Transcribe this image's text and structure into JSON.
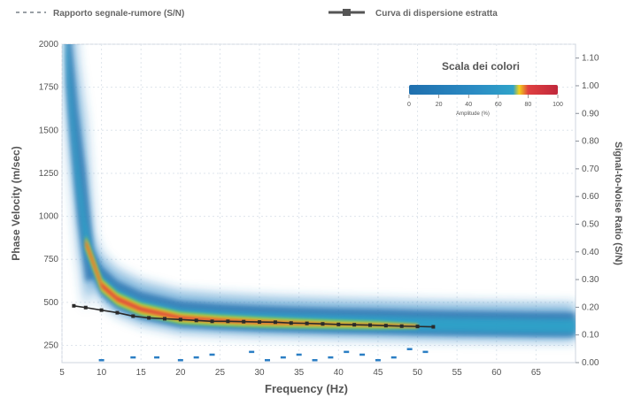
{
  "chart_data": {
    "type": "heatmap",
    "xlabel": "Frequency (Hz)",
    "ylabel": "Phase Velocity (m/sec)",
    "y2label": "Signal-to-Noise Ratio (S/N)",
    "xlim": [
      5,
      70
    ],
    "ylim": [
      150,
      2000
    ],
    "y2lim": [
      0.0,
      1.15
    ],
    "x_ticks": [
      "5",
      "10",
      "15",
      "20",
      "25",
      "30",
      "35",
      "40",
      "45",
      "50",
      "55",
      "60",
      "65"
    ],
    "y_ticks": [
      "250",
      "500",
      "750",
      "1000",
      "1250",
      "1500",
      "1750",
      "2000"
    ],
    "y2_ticks": [
      "0.00",
      "0.10",
      "0.20",
      "0.30",
      "0.40",
      "0.50",
      "0.60",
      "0.70",
      "0.80",
      "0.90",
      "1.00",
      "1.10"
    ],
    "grid": true,
    "legend": {
      "position": "top",
      "items": [
        {
          "label": "Rapporto segnale-rumore (S/N)",
          "style": "dashed",
          "color": "#9aa0a6"
        },
        {
          "label": "Curva di dispersione estratta",
          "style": "line-marker",
          "color": "#555555"
        }
      ]
    },
    "colorbar": {
      "title": "Scala dei colori",
      "label": "Amplitude (%)",
      "ticks": [
        "0",
        "20",
        "40",
        "60",
        "80",
        "100"
      ],
      "colors": [
        "#1f6fae",
        "#2b8cc4",
        "#2fa3c9",
        "#f2d21b",
        "#e04040",
        "#c0283c"
      ]
    },
    "dispersion_curve": {
      "x": [
        6.5,
        8,
        10,
        12,
        14,
        16,
        18,
        20,
        22,
        24,
        26,
        28,
        30,
        32,
        34,
        36,
        38,
        40,
        42,
        44,
        46,
        48,
        50,
        52
      ],
      "y": [
        480,
        470,
        455,
        440,
        420,
        410,
        405,
        400,
        395,
        390,
        390,
        388,
        386,
        385,
        380,
        378,
        375,
        372,
        370,
        368,
        365,
        362,
        360,
        358
      ]
    },
    "energy_ridge": {
      "x": [
        5.5,
        6,
        7,
        8,
        9,
        10,
        12,
        15,
        18,
        20,
        25,
        30,
        35,
        40,
        45,
        50,
        55,
        60,
        65,
        70
      ],
      "y": [
        2000,
        1700,
        1200,
        850,
        700,
        600,
        520,
        460,
        430,
        410,
        395,
        385,
        378,
        372,
        368,
        362,
        358,
        355,
        352,
        350
      ]
    },
    "snr_points": {
      "x": [
        10,
        14,
        17,
        20,
        22,
        24,
        29,
        31,
        33,
        35,
        37,
        39,
        41,
        43,
        45,
        47,
        49,
        51
      ],
      "y": [
        0.0,
        0.01,
        0.01,
        0.0,
        0.01,
        0.02,
        0.03,
        0.0,
        0.01,
        0.02,
        0.0,
        0.01,
        0.03,
        0.02,
        0.0,
        0.01,
        0.04,
        0.03
      ]
    }
  }
}
